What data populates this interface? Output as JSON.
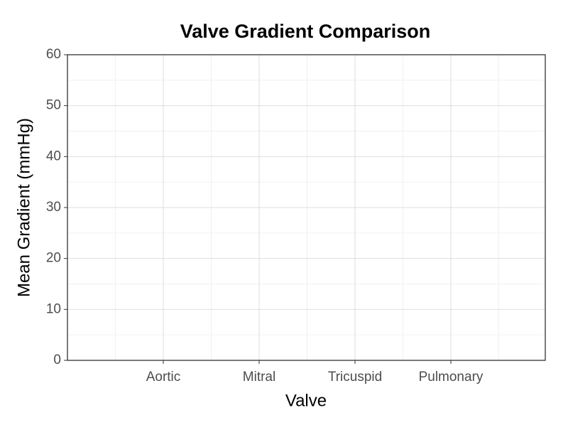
{
  "chart_data": {
    "type": "bar",
    "title": "Valve Gradient Comparison",
    "x_label": "Valve",
    "y_label": "Mean Gradient (mmHg)",
    "categories": [
      "Aortic",
      "Mitral",
      "Tricuspid",
      "Pulmonary"
    ],
    "ylim": [
      0,
      60
    ],
    "yticks": [
      0,
      10,
      20,
      30,
      40,
      50,
      60
    ],
    "grid": true
  }
}
